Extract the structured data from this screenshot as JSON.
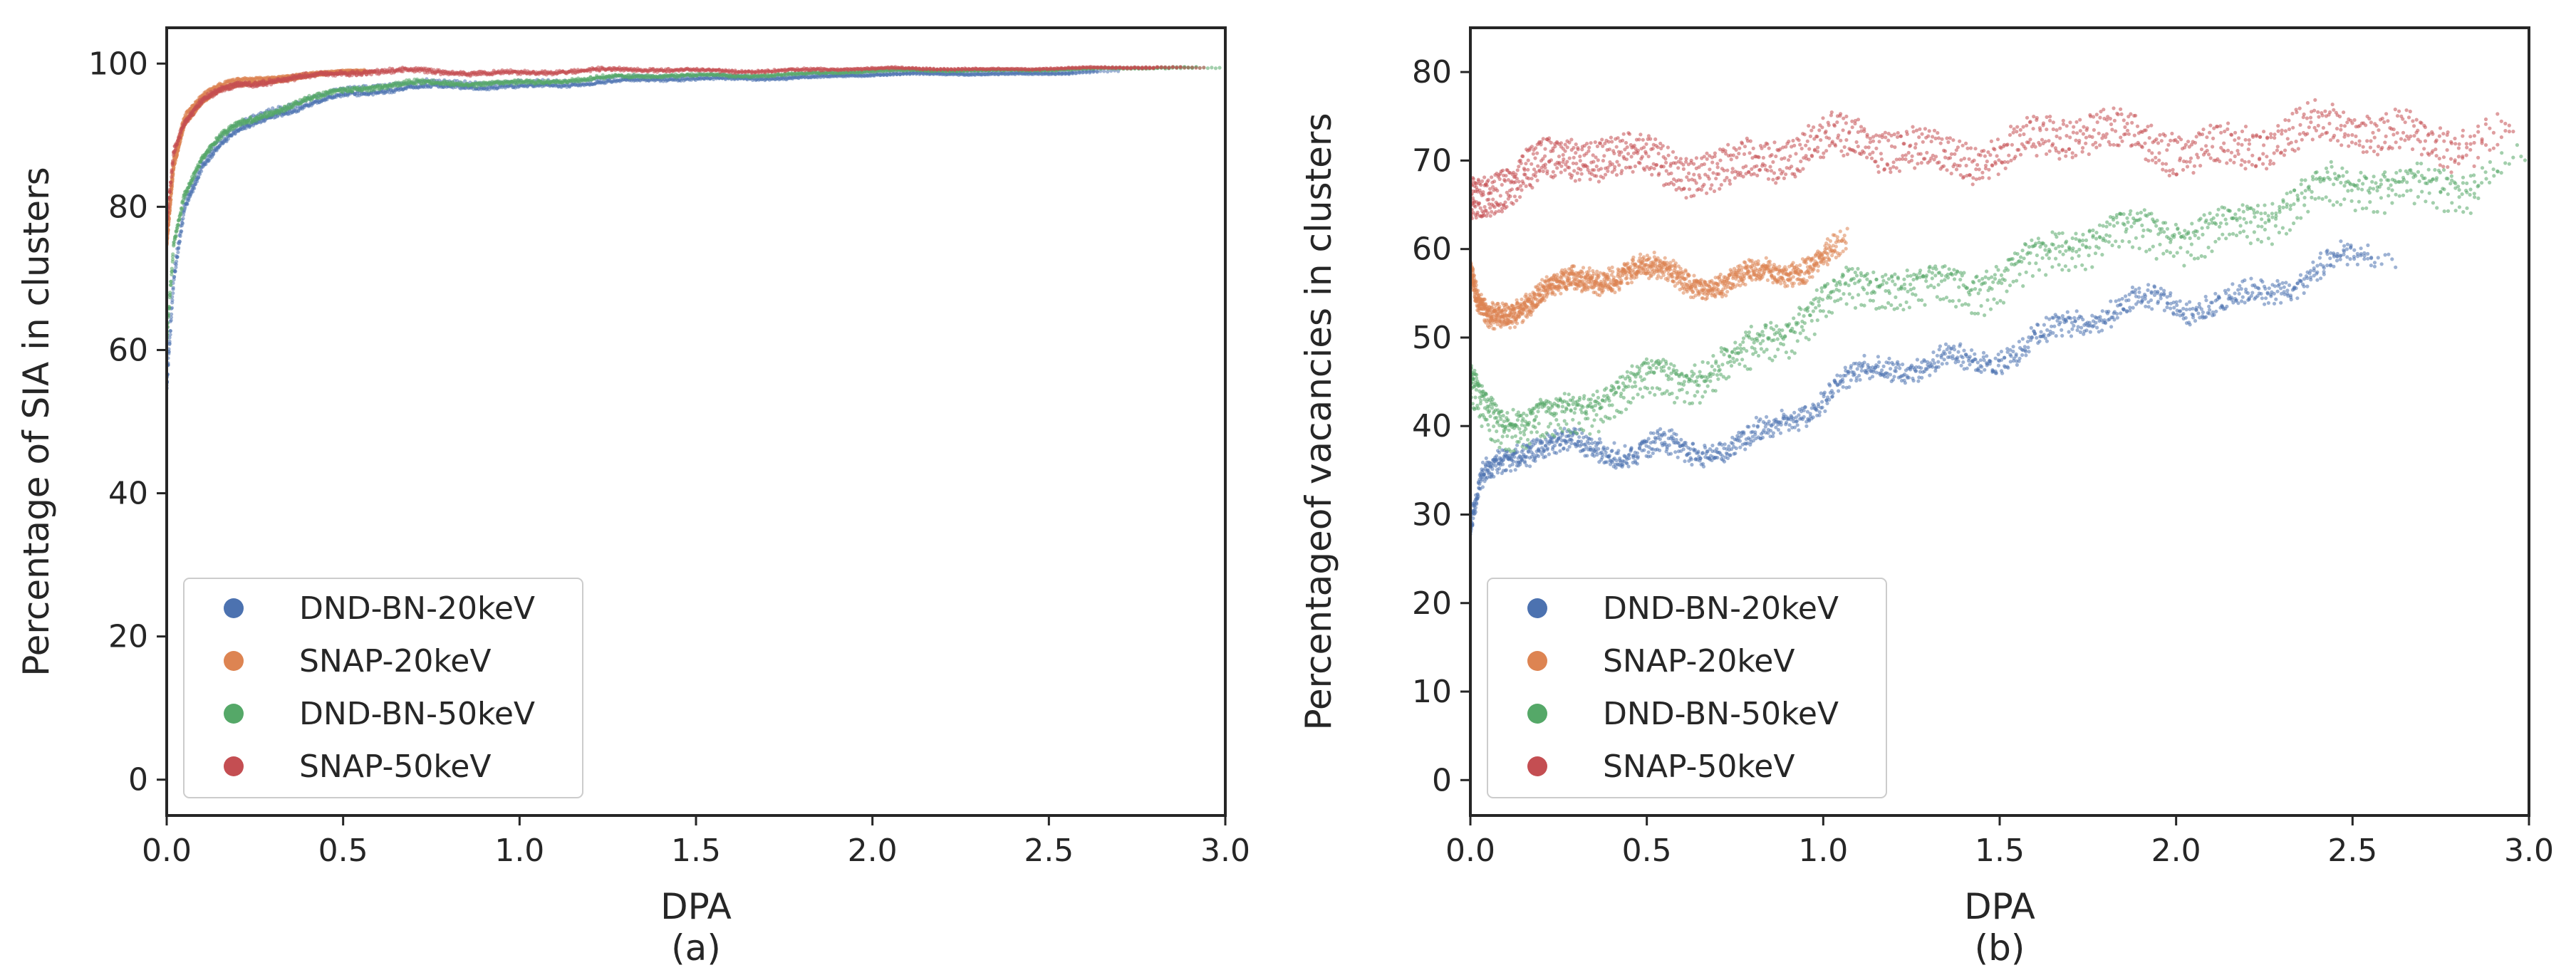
{
  "colors": {
    "DND-BN-20keV": "#4c72b0",
    "SNAP-20keV": "#dd8452",
    "DND-BN-50keV": "#55a868",
    "SNAP-50keV": "#c44e52"
  },
  "chart_data": [
    {
      "type": "scatter",
      "panel_label": "(a)",
      "xlabel": "DPA",
      "ylabel": "Percentage of SIA in clusters",
      "xlim": [
        0,
        3.0
      ],
      "ylim": [
        -5,
        105
      ],
      "xticks": [
        "0.0",
        "0.5",
        "1.0",
        "1.5",
        "2.0",
        "2.5",
        "3.0"
      ],
      "yticks": [
        "0",
        "20",
        "40",
        "60",
        "80",
        "100"
      ],
      "legend": [
        "DND-BN-20keV",
        "SNAP-20keV",
        "DND-BN-50keV",
        "SNAP-50keV"
      ],
      "legend_position": "lower-left",
      "series": [
        {
          "name": "DND-BN-20keV",
          "runs": 4,
          "x": [
            0.0,
            0.02,
            0.05,
            0.1,
            0.15,
            0.2,
            0.3,
            0.4,
            0.5,
            0.7,
            1.0,
            1.5,
            2.0,
            2.5,
            2.7
          ],
          "y": [
            55,
            70,
            80,
            86,
            89,
            91,
            93.5,
            95,
            96,
            96.8,
            97.3,
            98,
            98.5,
            98.8,
            99
          ]
        },
        {
          "name": "SNAP-20keV",
          "runs": 4,
          "x": [
            0.0,
            0.02,
            0.05,
            0.1,
            0.15,
            0.2,
            0.3,
            0.4,
            0.5,
            0.6
          ],
          "y": [
            75,
            86,
            92,
            95,
            96.5,
            97.3,
            98,
            98.5,
            98.8,
            99
          ]
        },
        {
          "name": "DND-BN-50keV",
          "runs": 4,
          "x": [
            0.0,
            0.02,
            0.05,
            0.1,
            0.15,
            0.2,
            0.3,
            0.4,
            0.5,
            0.7,
            1.0,
            1.5,
            2.0,
            2.5,
            3.0
          ],
          "y": [
            62,
            75,
            82,
            87,
            90,
            92,
            94,
            95.5,
            96.5,
            97.3,
            97.8,
            98.5,
            99,
            99.3,
            99.5
          ]
        },
        {
          "name": "SNAP-50keV",
          "runs": 4,
          "x": [
            0.0,
            0.02,
            0.05,
            0.1,
            0.15,
            0.2,
            0.3,
            0.5,
            0.7,
            1.0,
            1.5,
            2.0,
            2.5,
            3.0
          ],
          "y": [
            78,
            88,
            92,
            95,
            96.5,
            97.5,
            98.3,
            98.8,
            99,
            99.1,
            99.2,
            99.3,
            99.4,
            99.5
          ]
        }
      ]
    },
    {
      "type": "scatter",
      "panel_label": "(b)",
      "xlabel": "DPA",
      "ylabel": "Percentageof vacancies in clusters",
      "xlim": [
        0,
        3.0
      ],
      "ylim": [
        -4,
        85
      ],
      "xticks": [
        "0.0",
        "0.5",
        "1.0",
        "1.5",
        "2.0",
        "2.5",
        "3.0"
      ],
      "yticks": [
        "0",
        "10",
        "20",
        "30",
        "40",
        "50",
        "60",
        "70",
        "80"
      ],
      "legend": [
        "DND-BN-20keV",
        "SNAP-20keV",
        "DND-BN-50keV",
        "SNAP-50keV"
      ],
      "legend_position": "lower-left",
      "series": [
        {
          "name": "DND-BN-20keV",
          "runs": 4,
          "x": [
            0.0,
            0.03,
            0.08,
            0.15,
            0.25,
            0.35,
            0.45,
            0.6,
            0.8,
            1.0,
            1.2,
            1.5,
            1.8,
            2.0,
            2.2,
            2.5,
            2.68
          ],
          "y": [
            28,
            34,
            37,
            38,
            37,
            36,
            35,
            36.5,
            39,
            42,
            45,
            48.5,
            51,
            53,
            55,
            57,
            58
          ]
        },
        {
          "name": "SNAP-20keV",
          "runs": 4,
          "x": [
            0.0,
            0.02,
            0.05,
            0.1,
            0.2,
            0.3,
            0.4,
            0.5,
            0.6,
            0.7,
            0.8,
            0.9,
            1.0,
            1.08
          ],
          "y": [
            57,
            54,
            53,
            53.5,
            54,
            54.5,
            55,
            55.5,
            56,
            56.5,
            57,
            57,
            57.5,
            58
          ]
        },
        {
          "name": "DND-BN-50keV",
          "runs": 4,
          "x": [
            0.0,
            0.03,
            0.08,
            0.15,
            0.25,
            0.35,
            0.5,
            0.7,
            0.9,
            1.1,
            1.3,
            1.5,
            1.8,
            2.0,
            2.3,
            2.6,
            3.0
          ],
          "y": [
            46,
            44,
            42,
            40.5,
            40,
            41,
            44,
            47.5,
            51,
            54,
            56,
            57.5,
            60,
            62,
            64.5,
            66.5,
            69.5
          ]
        },
        {
          "name": "SNAP-50keV",
          "runs": 4,
          "x": [
            0.0,
            0.05,
            0.1,
            0.2,
            0.3,
            0.5,
            0.7,
            1.0,
            1.3,
            1.6,
            2.0,
            2.3,
            2.6,
            3.0
          ],
          "y": [
            67,
            68,
            68.5,
            69,
            69.3,
            69.8,
            70.3,
            71,
            71.5,
            72,
            72.3,
            72.6,
            73,
            73.5
          ]
        }
      ]
    }
  ]
}
